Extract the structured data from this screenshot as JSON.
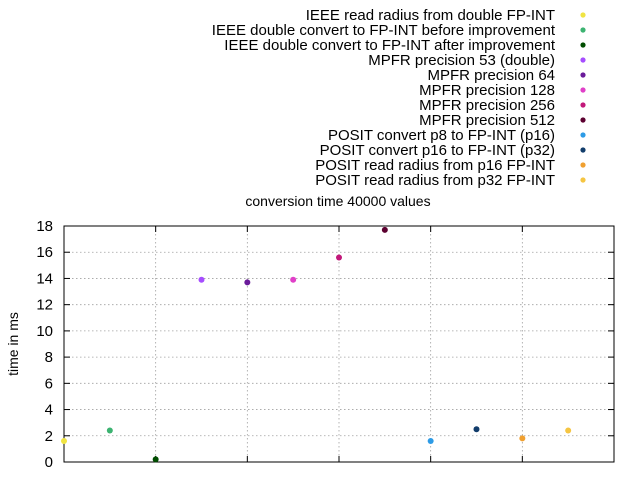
{
  "chart_data": {
    "type": "scatter",
    "title": "conversion time 40000 values",
    "xlabel": "",
    "ylabel": "time in ms",
    "ylim": [
      0,
      18
    ],
    "xlim": [
      0,
      12
    ],
    "yticks": [
      "0",
      "2",
      "4",
      "6",
      "8",
      "10",
      "12",
      "14",
      "16",
      "18"
    ],
    "grid": true,
    "legend_position": "top-right",
    "series": [
      {
        "name": "IEEE read radius from double FP-INT",
        "x": 0,
        "y": 1.6,
        "color": "#f0e442"
      },
      {
        "name": "IEEE double convert to FP-INT before improvement",
        "x": 1,
        "y": 2.4,
        "color": "#3cb371"
      },
      {
        "name": "IEEE double convert to FP-INT after improvement",
        "x": 2,
        "y": 0.2,
        "color": "#004d00"
      },
      {
        "name": "MPFR precision 53 (double)",
        "x": 3,
        "y": 13.9,
        "color": "#a64dff"
      },
      {
        "name": "MPFR precision 64",
        "x": 4,
        "y": 13.7,
        "color": "#6a1b9a"
      },
      {
        "name": "MPFR precision 128",
        "x": 5,
        "y": 13.9,
        "color": "#e040c8"
      },
      {
        "name": "MPFR precision 256",
        "x": 6,
        "y": 15.6,
        "color": "#c2187a"
      },
      {
        "name": "MPFR precision 512",
        "x": 7,
        "y": 17.7,
        "color": "#5c0030"
      },
      {
        "name": "POSIT convert p8 to FP-INT (p16)",
        "x": 8,
        "y": 1.6,
        "color": "#2d9be6"
      },
      {
        "name": "POSIT convert p16 to FP-INT (p32)",
        "x": 9,
        "y": 2.5,
        "color": "#123d6b"
      },
      {
        "name": "POSIT read radius from p16 FP-INT",
        "x": 10,
        "y": 1.8,
        "color": "#f0a030"
      },
      {
        "name": "POSIT read radius from p32 FP-INT",
        "x": 11,
        "y": 2.4,
        "color": "#f5c542"
      }
    ]
  }
}
